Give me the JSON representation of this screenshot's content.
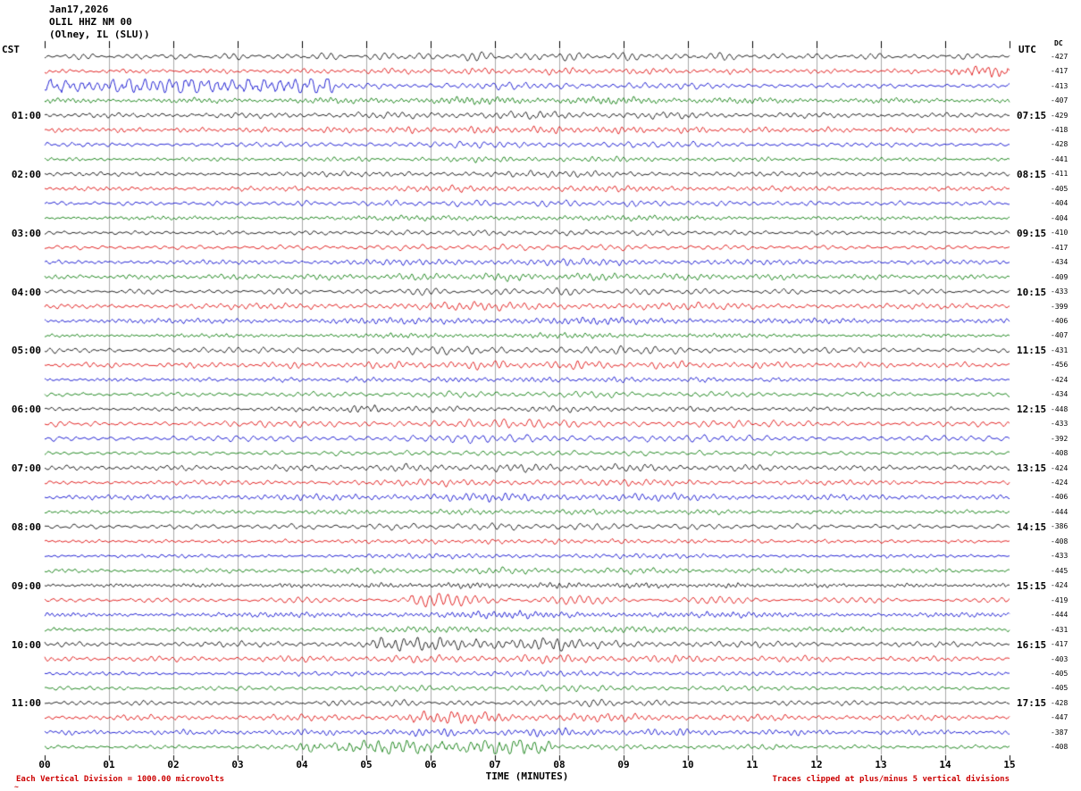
{
  "header": {
    "date": "Jan17,2026",
    "station": "OLIL HHZ NM 00",
    "location": "(Olney, IL (SLU))"
  },
  "axes": {
    "left_label": "CST",
    "right_label": "UTC",
    "dc_label": "DC",
    "x_label": "TIME (MINUTES)"
  },
  "footer": {
    "left_note": "Each Vertical Division = 1000.00 microvolts",
    "right_note": "Traces clipped at plus/minus 5 vertical divisions",
    "corner_mark": "~"
  },
  "chart_data": {
    "type": "seismogram",
    "row_count": 48,
    "rows_per_hour": 4,
    "minutes_per_row": 15,
    "x_ticks": [
      "00",
      "01",
      "02",
      "03",
      "04",
      "05",
      "06",
      "07",
      "08",
      "09",
      "10",
      "11",
      "12",
      "13",
      "14",
      "15"
    ],
    "trace_colors": [
      "#000000",
      "#dd0000",
      "#0000cc",
      "#007700"
    ],
    "left_time_labels": [
      {
        "row": 4,
        "label": "01:00"
      },
      {
        "row": 8,
        "label": "02:00"
      },
      {
        "row": 12,
        "label": "03:00"
      },
      {
        "row": 16,
        "label": "04:00"
      },
      {
        "row": 20,
        "label": "05:00"
      },
      {
        "row": 24,
        "label": "06:00"
      },
      {
        "row": 28,
        "label": "07:00"
      },
      {
        "row": 32,
        "label": "08:00"
      },
      {
        "row": 36,
        "label": "09:00"
      },
      {
        "row": 40,
        "label": "10:00"
      },
      {
        "row": 44,
        "label": "11:00"
      }
    ],
    "utc_time_labels": [
      {
        "row": 4,
        "label": "07:15"
      },
      {
        "row": 8,
        "label": "08:15"
      },
      {
        "row": 12,
        "label": "09:15"
      },
      {
        "row": 16,
        "label": "10:15"
      },
      {
        "row": 20,
        "label": "11:15"
      },
      {
        "row": 24,
        "label": "12:15"
      },
      {
        "row": 28,
        "label": "13:15"
      },
      {
        "row": 32,
        "label": "14:15"
      },
      {
        "row": 36,
        "label": "15:15"
      },
      {
        "row": 40,
        "label": "16:15"
      },
      {
        "row": 44,
        "label": "17:15"
      }
    ],
    "dc_values": [
      "-427",
      "-417",
      "-413",
      "-407",
      "-429",
      "-418",
      "-428",
      "-441",
      "-411",
      "-405",
      "-404",
      "-404",
      "-410",
      "-417",
      "-434",
      "-409",
      "-433",
      "-399",
      "-406",
      "-407",
      "-431",
      "-456",
      "-424",
      "-434",
      "-448",
      "-433",
      "-392",
      "-408",
      "-424",
      "-424",
      "-406",
      "-444",
      "-386",
      "-408",
      "-433",
      "-445",
      "-424",
      "-419",
      "-444",
      "-431",
      "-417",
      "-403",
      "-405",
      "-405",
      "-428",
      "-447",
      "-387",
      "-408"
    ],
    "noise": {
      "base_amplitude": 2.2,
      "clip": 7.5,
      "mid_band_center_min": 7.6,
      "mid_band_sigma_min": 2.4,
      "mid_band_gain": 0.7
    },
    "events": [
      {
        "row": 2,
        "start_min": 0.0,
        "end_min": 4.45,
        "gain": 4.0
      },
      {
        "row": 1,
        "start_min": 14.1,
        "end_min": 15.0,
        "gain": 2.6
      },
      {
        "row": 24,
        "start_min": 4.65,
        "end_min": 5.25,
        "gain": 2.2
      },
      {
        "row": 37,
        "start_min": 5.7,
        "end_min": 7.2,
        "gain": 1.7
      },
      {
        "row": 40,
        "start_min": 5.1,
        "end_min": 8.2,
        "gain": 1.9
      },
      {
        "row": 45,
        "start_min": 5.6,
        "end_min": 7.2,
        "gain": 1.5
      },
      {
        "row": 47,
        "start_min": 3.95,
        "end_min": 7.9,
        "gain": 3.0
      },
      {
        "row": 47,
        "start_min": 11.1,
        "end_min": 11.6,
        "gain": 1.8
      }
    ]
  }
}
